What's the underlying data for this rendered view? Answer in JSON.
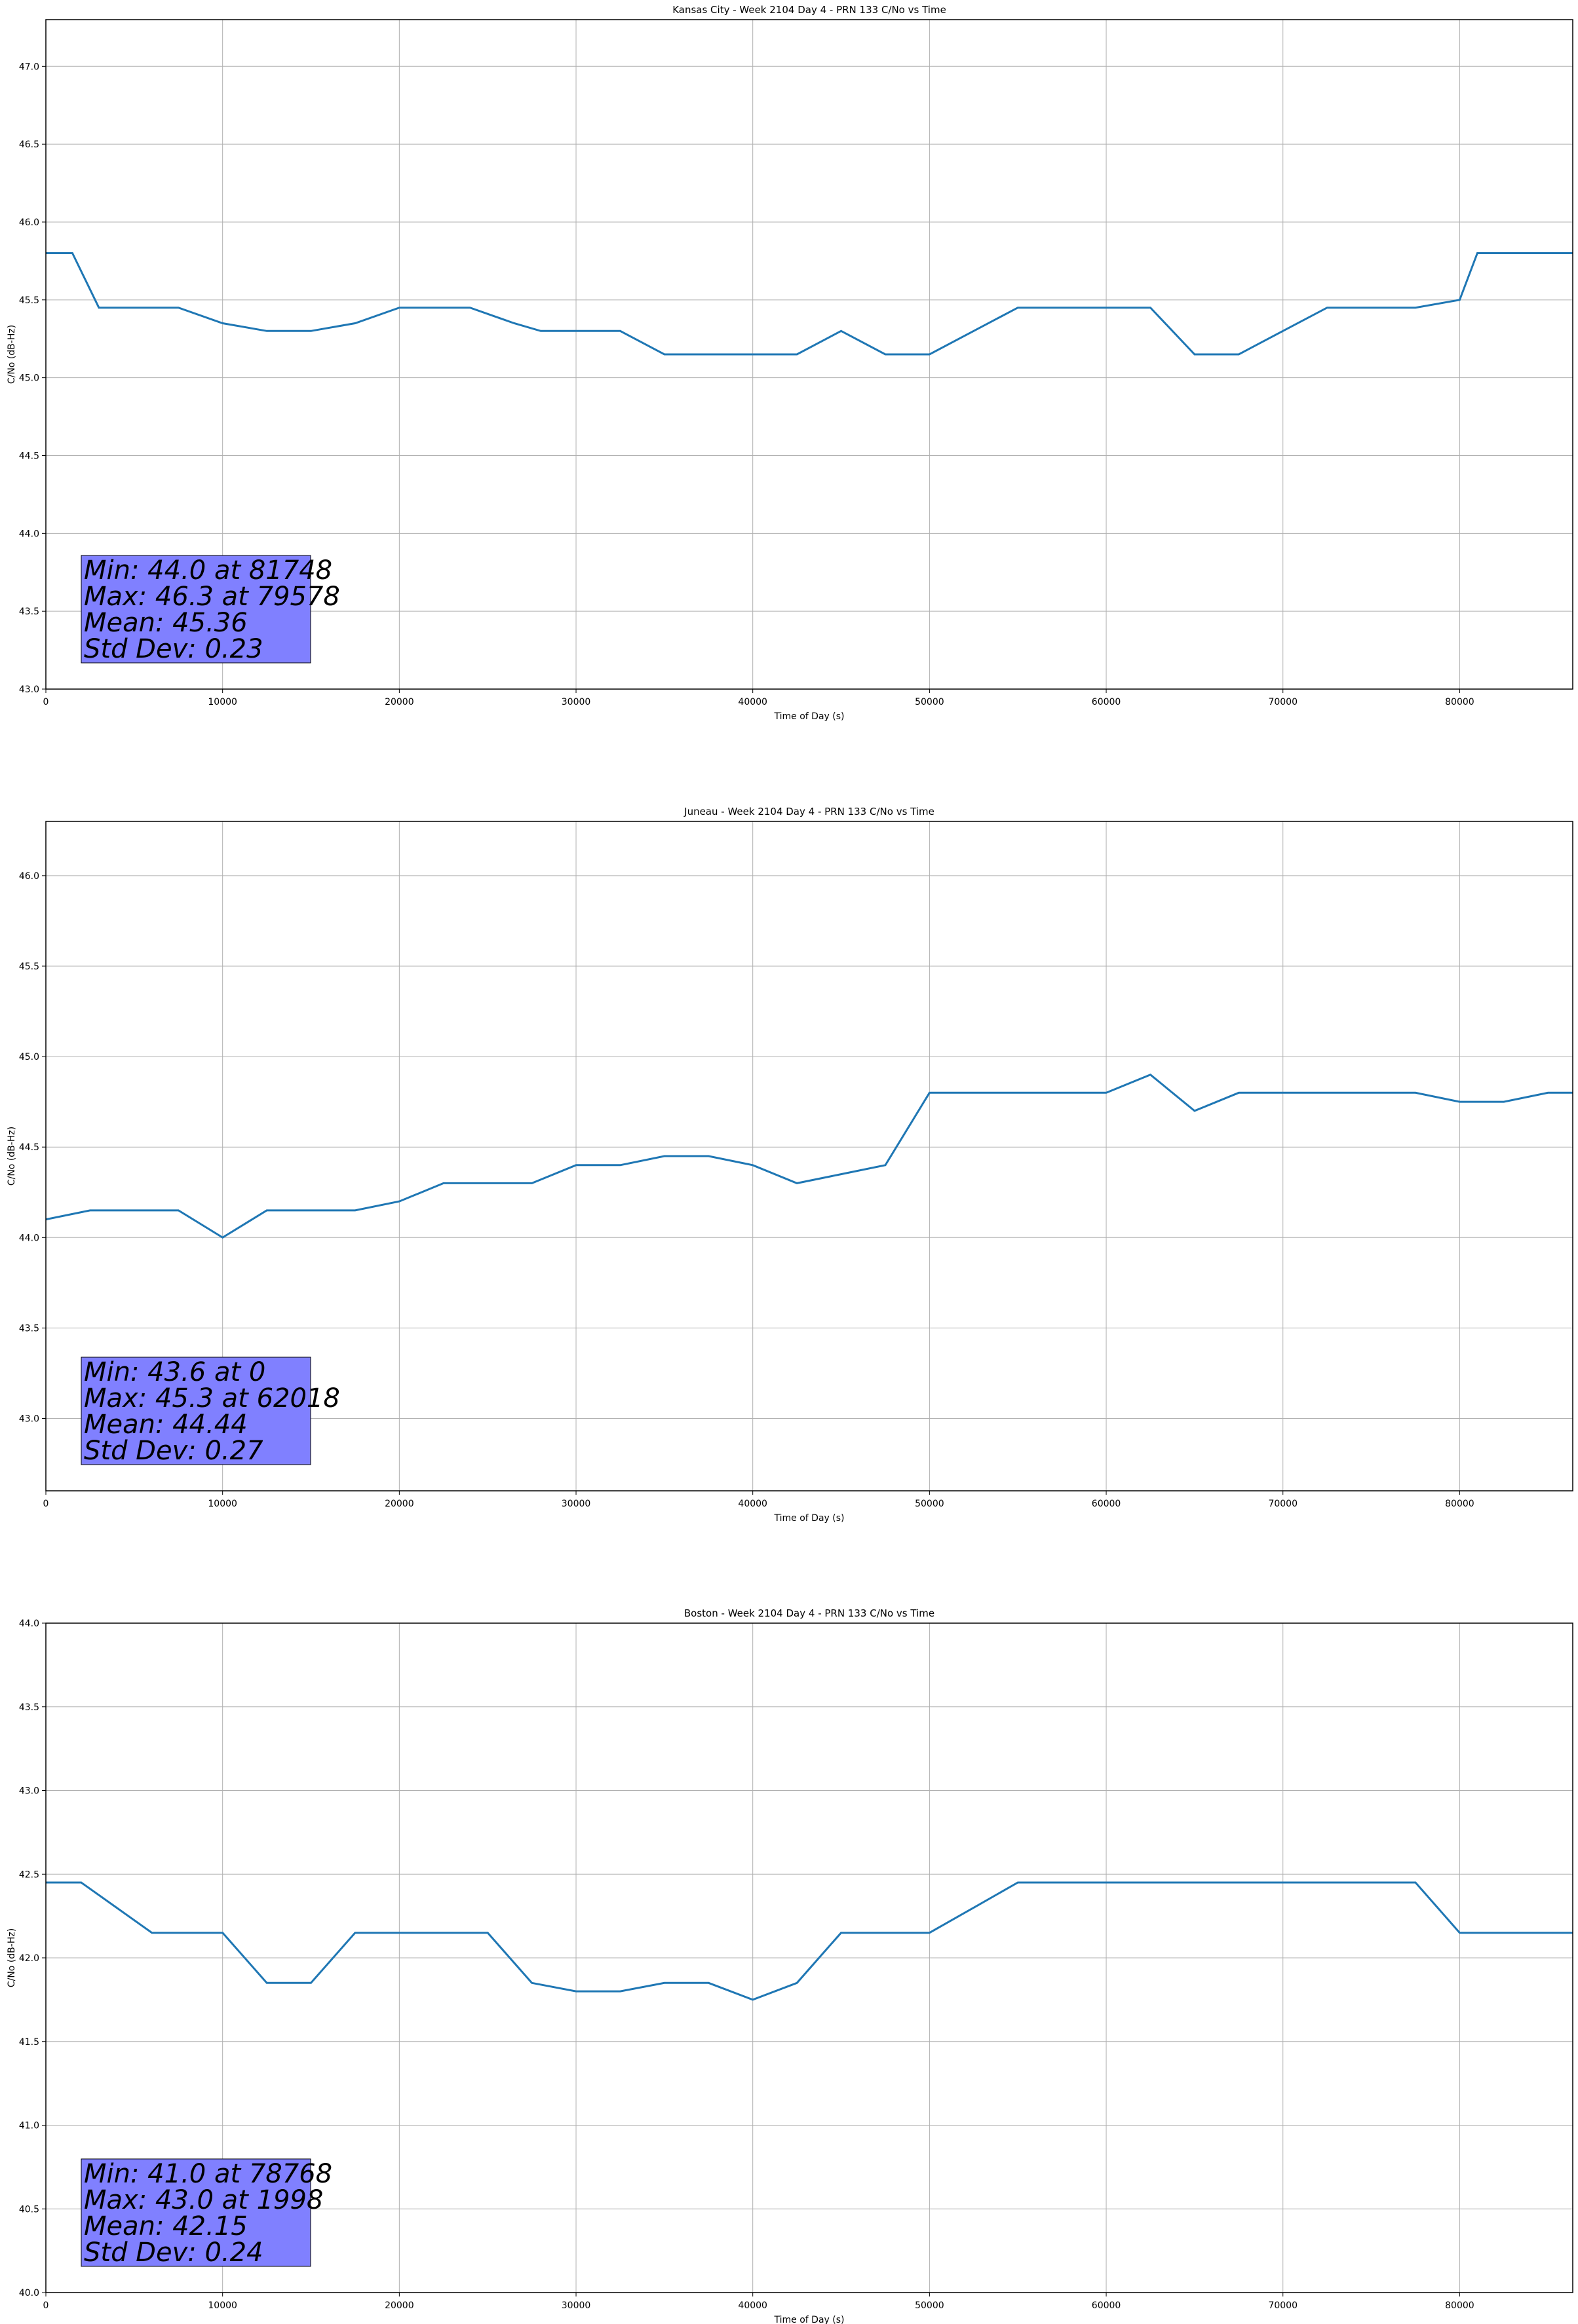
{
  "chart_data": [
    {
      "type": "line",
      "title": "Kansas City - Week 2104 Day 4 - PRN 133 C/No vs Time",
      "xlabel": "Time of Day (s)",
      "ylabel": "C/No (dB-Hz)",
      "xlim": [
        0,
        86400
      ],
      "ylim": [
        43.0,
        47.3
      ],
      "xticks": [
        0,
        10000,
        20000,
        30000,
        40000,
        50000,
        60000,
        70000,
        80000
      ],
      "yticks": [
        43.0,
        43.5,
        44.0,
        44.5,
        45.0,
        45.5,
        46.0,
        46.5,
        47.0
      ],
      "ytick_decimals": 1,
      "grid": true,
      "series_color": "#1f77b4",
      "series": [
        {
          "x": [
            0,
            1500,
            3000,
            5000,
            7500,
            10000,
            12500,
            15000,
            17500,
            20000,
            22000,
            24000,
            26500,
            28000,
            30000,
            32500,
            35000,
            37500,
            40000,
            42500,
            45000,
            47500,
            50000,
            52500,
            55000,
            57500,
            60000,
            62500,
            65000,
            67500,
            70000,
            72500,
            75000,
            77500,
            80000,
            81000,
            82000,
            83500,
            85000,
            86400
          ],
          "y": [
            45.8,
            45.8,
            45.45,
            45.45,
            45.45,
            45.35,
            45.3,
            45.3,
            45.35,
            45.45,
            45.45,
            45.45,
            45.35,
            45.3,
            45.3,
            45.3,
            45.15,
            45.15,
            45.15,
            45.15,
            45.3,
            45.15,
            45.15,
            45.3,
            45.45,
            45.45,
            45.45,
            45.45,
            45.15,
            45.15,
            45.3,
            45.45,
            45.45,
            45.45,
            45.5,
            45.8,
            45.8,
            45.8,
            45.8,
            45.8
          ]
        }
      ],
      "stats": [
        "Min: 44.0 at 81748",
        "Max: 46.3 at 79578",
        "Mean: 45.36",
        "Std Dev: 0.23"
      ]
    },
    {
      "type": "line",
      "title": "Juneau - Week 2104 Day 4 - PRN 133 C/No vs Time",
      "xlabel": "Time of Day (s)",
      "ylabel": "C/No (dB-Hz)",
      "xlim": [
        0,
        86400
      ],
      "ylim": [
        42.6,
        46.3
      ],
      "xticks": [
        0,
        10000,
        20000,
        30000,
        40000,
        50000,
        60000,
        70000,
        80000
      ],
      "yticks": [
        43.0,
        43.5,
        44.0,
        44.5,
        45.0,
        45.5,
        46.0
      ],
      "ytick_decimals": 1,
      "grid": true,
      "series_color": "#1f77b4",
      "series": [
        {
          "x": [
            0,
            2500,
            5000,
            7500,
            10000,
            12500,
            15000,
            17500,
            20000,
            22500,
            25000,
            27500,
            30000,
            32500,
            35000,
            37500,
            40000,
            42500,
            45000,
            47500,
            50000,
            52500,
            55000,
            57500,
            60000,
            62500,
            65000,
            67500,
            70000,
            72500,
            75000,
            77500,
            80000,
            82500,
            85000,
            86400
          ],
          "y": [
            44.1,
            44.15,
            44.15,
            44.15,
            44.0,
            44.15,
            44.15,
            44.15,
            44.2,
            44.3,
            44.3,
            44.3,
            44.4,
            44.4,
            44.45,
            44.45,
            44.4,
            44.3,
            44.35,
            44.4,
            44.8,
            44.8,
            44.8,
            44.8,
            44.8,
            44.9,
            44.7,
            44.8,
            44.8,
            44.8,
            44.8,
            44.8,
            44.75,
            44.75,
            44.8,
            44.8
          ]
        }
      ],
      "stats": [
        "Min: 43.6 at 0",
        "Max: 45.3 at 62018",
        "Mean: 44.44",
        "Std Dev: 0.27"
      ]
    },
    {
      "type": "line",
      "title": "Boston - Week 2104 Day 4 - PRN 133 C/No vs Time",
      "xlabel": "Time of Day (s)",
      "ylabel": "C/No (dB-Hz)",
      "xlim": [
        0,
        86400
      ],
      "ylim": [
        40.0,
        44.0
      ],
      "xticks": [
        0,
        10000,
        20000,
        30000,
        40000,
        50000,
        60000,
        70000,
        80000
      ],
      "yticks": [
        40.0,
        40.5,
        41.0,
        41.5,
        42.0,
        42.5,
        43.0,
        43.5,
        44.0
      ],
      "ytick_decimals": 1,
      "grid": true,
      "series_color": "#1f77b4",
      "series": [
        {
          "x": [
            0,
            2000,
            4000,
            6000,
            8000,
            10000,
            12500,
            15000,
            17500,
            20000,
            22500,
            25000,
            27500,
            30000,
            32500,
            35000,
            37500,
            40000,
            42500,
            45000,
            47500,
            50000,
            52500,
            55000,
            57500,
            60000,
            62500,
            65000,
            67500,
            70000,
            72500,
            75000,
            77500,
            80000,
            82500,
            85000,
            86400
          ],
          "y": [
            42.45,
            42.45,
            42.3,
            42.15,
            42.15,
            42.15,
            41.85,
            41.85,
            42.15,
            42.15,
            42.15,
            42.15,
            41.85,
            41.8,
            41.8,
            41.85,
            41.85,
            41.75,
            41.85,
            42.15,
            42.15,
            42.15,
            42.3,
            42.45,
            42.45,
            42.45,
            42.45,
            42.45,
            42.45,
            42.45,
            42.45,
            42.45,
            42.45,
            42.15,
            42.15,
            42.15,
            42.15
          ]
        }
      ],
      "stats": [
        "Min: 41.0 at 78768",
        "Max: 43.0 at 1998",
        "Mean: 42.15",
        "Std Dev: 0.24"
      ]
    }
  ]
}
